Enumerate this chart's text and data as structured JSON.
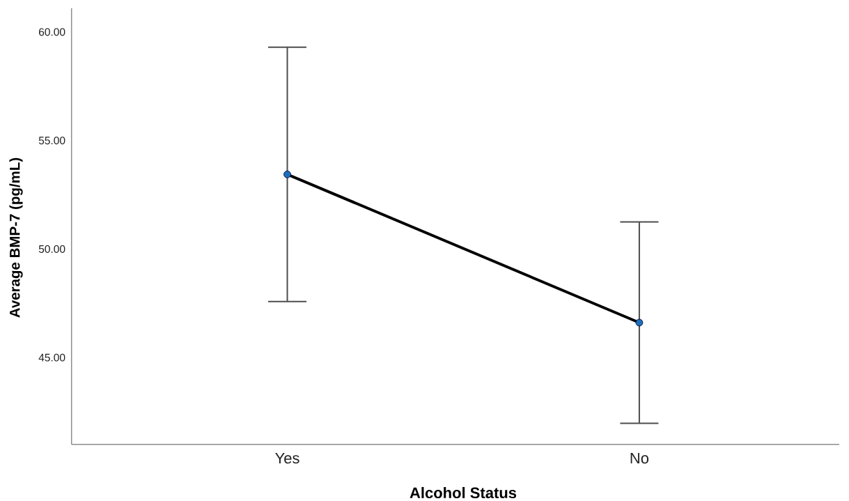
{
  "chart_data": {
    "type": "line",
    "xlabel": "Alcohol Status",
    "ylabel": "Average BMP-7 (pg/mL)",
    "categories": [
      "Yes",
      "No"
    ],
    "values": [
      53.44,
      46.61
    ],
    "errors": [
      5.86,
      4.64
    ],
    "color": "#000000",
    "colors": [
      "#1f6fb8",
      "#1f6fb8"
    ],
    "marker": "circle",
    "line_style": "solid",
    "ylim": [
      41,
      61.1
    ],
    "yticks": [
      {
        "value": 45,
        "label": "45.00"
      },
      {
        "value": 50,
        "label": "50.00"
      },
      {
        "value": 55,
        "label": "55.00"
      },
      {
        "value": 60,
        "label": "60.00"
      }
    ]
  }
}
